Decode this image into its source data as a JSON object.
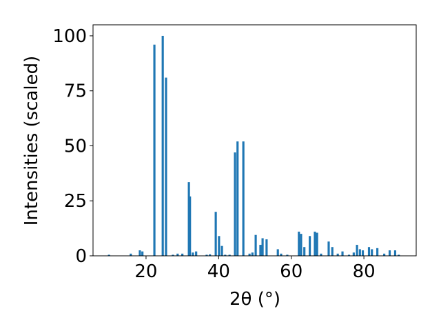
{
  "chart_data": {
    "type": "bar",
    "xlabel": "2θ (°)",
    "ylabel": "Intensities (scaled)",
    "color": "#1f77b4",
    "x": [
      9.8,
      15.8,
      18.3,
      19.0,
      22.3,
      24.6,
      25.5,
      27.4,
      28.7,
      30.0,
      31.8,
      32.1,
      32.9,
      33.8,
      36.7,
      37.6,
      39.2,
      40.1,
      40.9,
      41.8,
      43.0,
      44.5,
      45.2,
      46.8,
      48.5,
      49.3,
      50.2,
      51.5,
      52.1,
      53.2,
      56.3,
      57.2,
      58.9,
      62.1,
      62.7,
      63.6,
      65.1,
      66.5,
      67.1,
      68.2,
      70.3,
      71.3,
      72.8,
      74.1,
      75.9,
      77.2,
      78.1,
      78.9,
      79.7,
      81.4,
      82.2,
      83.7,
      85.6,
      87.1,
      88.6,
      89.6
    ],
    "values": [
      0.5,
      1,
      2.5,
      2,
      96,
      100,
      81,
      0.5,
      1,
      1,
      33.5,
      27,
      1.5,
      2,
      0.5,
      0.7,
      20,
      9,
      4.5,
      0.5,
      0.5,
      47,
      52,
      52,
      1,
      1.5,
      9.5,
      5,
      8,
      7.5,
      3,
      1,
      0.5,
      11,
      10,
      4,
      9,
      11,
      10.5,
      1,
      6.5,
      4,
      1,
      2,
      0.5,
      1.5,
      5,
      3,
      2.5,
      4,
      3,
      3.5,
      1,
      2.5,
      2.5,
      0.5
    ],
    "xlim": [
      5.4,
      94.4
    ],
    "ylim": [
      0,
      105
    ],
    "xticks": [
      20,
      40,
      60,
      80
    ],
    "yticks": [
      0,
      25,
      50,
      75,
      100
    ]
  }
}
